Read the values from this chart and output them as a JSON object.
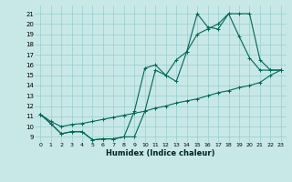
{
  "xlabel": "Humidex (Indice chaleur)",
  "bg_color": "#c8e8e8",
  "grid_color": "#99cccc",
  "line_color": "#006655",
  "xlim": [
    -0.5,
    23.5
  ],
  "ylim": [
    8.5,
    21.8
  ],
  "xticks": [
    0,
    1,
    2,
    3,
    4,
    5,
    6,
    7,
    8,
    9,
    10,
    11,
    12,
    13,
    14,
    15,
    16,
    17,
    18,
    19,
    20,
    21,
    22,
    23
  ],
  "yticks": [
    9,
    10,
    11,
    12,
    13,
    14,
    15,
    16,
    17,
    18,
    19,
    20,
    21
  ],
  "line1_x": [
    0,
    1,
    2,
    3,
    4,
    5,
    6,
    7,
    8,
    9,
    10,
    11,
    12,
    13,
    14,
    15,
    16,
    17,
    18,
    19,
    20,
    21,
    22,
    23
  ],
  "line1_y": [
    11.2,
    10.3,
    9.3,
    9.5,
    9.5,
    8.7,
    8.8,
    8.8,
    9.0,
    11.5,
    15.7,
    16.0,
    15.0,
    14.4,
    17.3,
    19.0,
    19.5,
    20.0,
    21.0,
    18.8,
    16.7,
    15.5,
    15.5,
    15.5
  ],
  "line2_x": [
    0,
    1,
    2,
    3,
    4,
    5,
    6,
    7,
    8,
    9,
    10,
    11,
    12,
    13,
    14,
    15,
    16,
    17,
    18,
    19,
    20,
    21,
    22,
    23
  ],
  "line2_y": [
    11.2,
    10.3,
    9.3,
    9.5,
    9.5,
    8.7,
    8.8,
    8.8,
    9.0,
    9.0,
    11.5,
    15.5,
    15.0,
    16.5,
    17.3,
    21.0,
    19.7,
    19.5,
    21.0,
    21.0,
    21.0,
    16.5,
    15.5,
    15.5
  ],
  "line3_x": [
    0,
    1,
    2,
    3,
    4,
    5,
    6,
    7,
    8,
    9,
    10,
    11,
    12,
    13,
    14,
    15,
    16,
    17,
    18,
    19,
    20,
    21,
    22,
    23
  ],
  "line3_y": [
    11.2,
    10.5,
    10.0,
    10.2,
    10.3,
    10.5,
    10.7,
    10.9,
    11.1,
    11.3,
    11.5,
    11.8,
    12.0,
    12.3,
    12.5,
    12.7,
    13.0,
    13.3,
    13.5,
    13.8,
    14.0,
    14.3,
    15.0,
    15.5
  ]
}
